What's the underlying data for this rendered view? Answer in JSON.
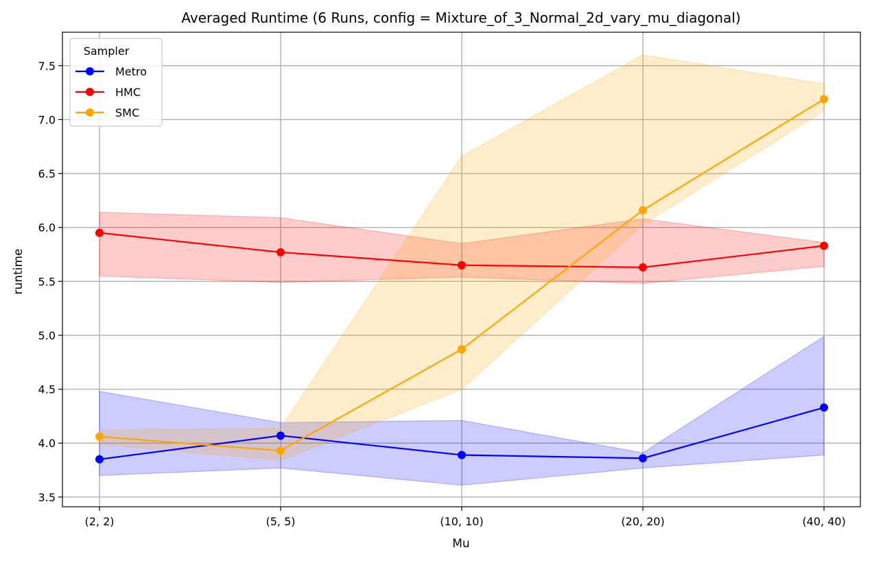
{
  "chart_data": {
    "type": "line",
    "title": "Averaged Runtime (6 Runs, config = Mixture_of_3_Normal_2d_vary_mu_diagonal)",
    "xlabel": "Mu",
    "ylabel": "runtime",
    "categories": [
      "(2, 2)",
      "(5, 5)",
      "(10, 10)",
      "(20, 20)",
      "(40, 40)"
    ],
    "ylim": [
      3.41,
      7.81
    ],
    "yticks": [
      3.5,
      4.0,
      4.5,
      5.0,
      5.5,
      6.0,
      6.5,
      7.0,
      7.5
    ],
    "ytick_labels": [
      "3.5",
      "4.0",
      "4.5",
      "5.0",
      "5.5",
      "6.0",
      "6.5",
      "7.0",
      "7.5"
    ],
    "grid": true,
    "legend": {
      "title": "Sampler",
      "position": "top-left"
    },
    "series": [
      {
        "name": "Metro",
        "color": "#0000ff",
        "band_color": "#0000ff",
        "marker": "circle",
        "values": [
          3.85,
          4.07,
          3.89,
          3.86,
          4.33
        ],
        "band_low": [
          3.7,
          3.77,
          3.61,
          3.77,
          3.89
        ],
        "band_high": [
          4.48,
          4.19,
          4.21,
          3.91,
          4.99
        ]
      },
      {
        "name": "HMC",
        "color": "#ff0000",
        "band_color": "#ff0000",
        "marker": "circle",
        "values": [
          5.95,
          5.77,
          5.65,
          5.63,
          5.83
        ],
        "band_low": [
          5.55,
          5.49,
          5.54,
          5.48,
          5.64
        ],
        "band_high": [
          6.14,
          6.09,
          5.85,
          6.08,
          5.86
        ]
      },
      {
        "name": "SMC",
        "color": "#ffa500",
        "band_color": "#ffa500",
        "marker": "circle",
        "values": [
          4.06,
          3.93,
          4.87,
          6.16,
          7.19
        ],
        "band_low": [
          3.99,
          3.84,
          4.5,
          6.03,
          7.08
        ],
        "band_high": [
          4.12,
          4.14,
          6.66,
          7.6,
          7.33
        ]
      }
    ]
  }
}
